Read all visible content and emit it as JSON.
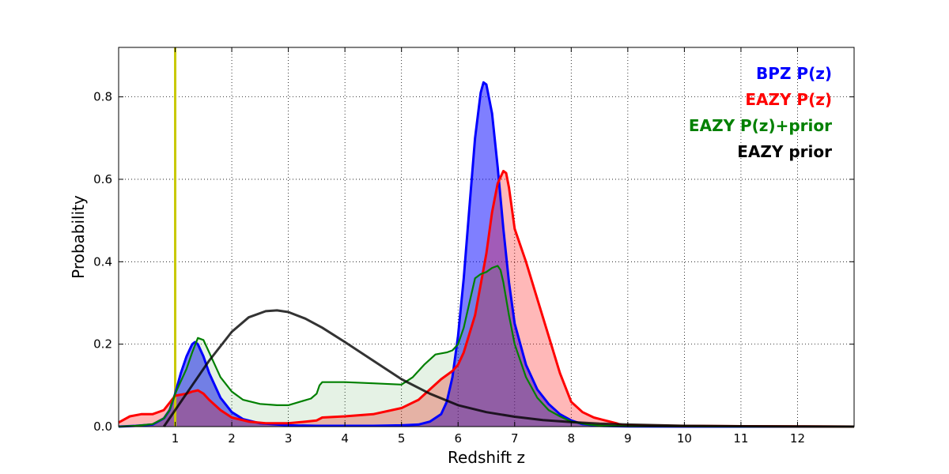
{
  "chart_data": {
    "type": "area",
    "xlabel": "Redshift z",
    "ylabel": "Probability",
    "xlim": [
      0,
      13
    ],
    "ylim": [
      0,
      0.92
    ],
    "xticks": [
      1,
      2,
      3,
      4,
      5,
      6,
      7,
      8,
      9,
      10,
      11,
      12
    ],
    "yticks": [
      0.0,
      0.2,
      0.4,
      0.6,
      0.8
    ],
    "ytick_labels": [
      "0.0",
      "0.2",
      "0.4",
      "0.6",
      "0.8"
    ],
    "grid": true,
    "legend_placement": "top-right",
    "vertical_line": {
      "x": 1.0,
      "color": "#c8c800"
    },
    "series": [
      {
        "name": "BPZ P(z)",
        "color": "#0000ff",
        "fill": "#0000ff",
        "fill_opacity": 0.5,
        "x": [
          0,
          0.3,
          0.6,
          0.8,
          0.9,
          1.0,
          1.1,
          1.2,
          1.3,
          1.35,
          1.4,
          1.5,
          1.6,
          1.8,
          2.0,
          2.2,
          2.5,
          3.0,
          3.5,
          4.0,
          4.5,
          5.0,
          5.3,
          5.5,
          5.7,
          5.8,
          5.9,
          6.0,
          6.1,
          6.2,
          6.3,
          6.4,
          6.45,
          6.5,
          6.6,
          6.7,
          6.8,
          6.9,
          7.0,
          7.2,
          7.4,
          7.6,
          7.8,
          8.0,
          8.2,
          8.5,
          9.0,
          10,
          11,
          12,
          13
        ],
        "y": [
          0.0,
          0.002,
          0.005,
          0.02,
          0.04,
          0.08,
          0.13,
          0.17,
          0.2,
          0.205,
          0.2,
          0.17,
          0.13,
          0.07,
          0.035,
          0.018,
          0.008,
          0.003,
          0.002,
          0.002,
          0.002,
          0.003,
          0.005,
          0.012,
          0.03,
          0.06,
          0.12,
          0.22,
          0.36,
          0.53,
          0.7,
          0.81,
          0.835,
          0.83,
          0.76,
          0.63,
          0.48,
          0.35,
          0.25,
          0.15,
          0.09,
          0.055,
          0.03,
          0.015,
          0.006,
          0.002,
          0.0005,
          0.0,
          0.0,
          0.0,
          0.0
        ]
      },
      {
        "name": "EAZY P(z)",
        "color": "#ff0000",
        "fill": "#ff0000",
        "fill_opacity": 0.28,
        "x": [
          0,
          0.2,
          0.4,
          0.6,
          0.8,
          1.0,
          1.2,
          1.3,
          1.4,
          1.5,
          1.6,
          1.8,
          2.0,
          2.3,
          2.6,
          3.0,
          3.3,
          3.5,
          3.6,
          4.0,
          4.5,
          5.0,
          5.3,
          5.5,
          5.7,
          5.9,
          6.0,
          6.1,
          6.3,
          6.5,
          6.6,
          6.7,
          6.8,
          6.85,
          6.9,
          7.0,
          7.2,
          7.4,
          7.6,
          7.8,
          8.0,
          8.2,
          8.4,
          8.6,
          8.8,
          8.9,
          9.5,
          10,
          11,
          12,
          13
        ],
        "y": [
          0.01,
          0.025,
          0.03,
          0.03,
          0.04,
          0.075,
          0.08,
          0.085,
          0.088,
          0.08,
          0.065,
          0.04,
          0.022,
          0.012,
          0.008,
          0.008,
          0.012,
          0.015,
          0.022,
          0.025,
          0.03,
          0.045,
          0.065,
          0.09,
          0.115,
          0.135,
          0.15,
          0.18,
          0.27,
          0.42,
          0.52,
          0.59,
          0.62,
          0.615,
          0.58,
          0.48,
          0.4,
          0.31,
          0.22,
          0.13,
          0.06,
          0.035,
          0.022,
          0.015,
          0.008,
          0.003,
          0.002,
          0.0015,
          0.001,
          0.0005,
          0.0
        ]
      },
      {
        "name": "EAZY P(z)+prior",
        "color": "#008000",
        "fill": "#008000",
        "fill_opacity": 0.1,
        "x": [
          0,
          0.3,
          0.6,
          0.8,
          0.9,
          1.0,
          1.1,
          1.2,
          1.3,
          1.4,
          1.5,
          1.6,
          1.7,
          1.8,
          2.0,
          2.2,
          2.5,
          2.8,
          3.0,
          3.2,
          3.4,
          3.5,
          3.55,
          3.6,
          4.0,
          4.5,
          5.0,
          5.2,
          5.4,
          5.6,
          5.8,
          5.9,
          6.0,
          6.1,
          6.2,
          6.3,
          6.4,
          6.5,
          6.6,
          6.7,
          6.75,
          6.8,
          6.9,
          7.0,
          7.2,
          7.4,
          7.6,
          7.8,
          8.0,
          8.3,
          8.6,
          9.0,
          10,
          11,
          12,
          13
        ],
        "y": [
          0.0,
          0.002,
          0.006,
          0.02,
          0.04,
          0.08,
          0.11,
          0.14,
          0.18,
          0.215,
          0.21,
          0.18,
          0.15,
          0.12,
          0.085,
          0.065,
          0.055,
          0.052,
          0.052,
          0.06,
          0.068,
          0.08,
          0.1,
          0.108,
          0.108,
          0.105,
          0.102,
          0.12,
          0.15,
          0.175,
          0.18,
          0.185,
          0.2,
          0.24,
          0.3,
          0.36,
          0.37,
          0.375,
          0.385,
          0.39,
          0.38,
          0.35,
          0.27,
          0.2,
          0.12,
          0.07,
          0.04,
          0.025,
          0.012,
          0.005,
          0.002,
          0.001,
          0.0005,
          0.0,
          0.0,
          0.0
        ]
      },
      {
        "name": "EAZY prior",
        "color": "#000000",
        "fill": "none",
        "fill_opacity": 0,
        "x": [
          0.8,
          1.0,
          1.3,
          1.6,
          2.0,
          2.3,
          2.6,
          2.8,
          3.0,
          3.3,
          3.6,
          4.0,
          4.5,
          5.0,
          5.5,
          6.0,
          6.5,
          7.0,
          7.5,
          8.0,
          8.5,
          9.0,
          10,
          11,
          12,
          13
        ],
        "y": [
          0.0,
          0.04,
          0.1,
          0.16,
          0.23,
          0.265,
          0.28,
          0.282,
          0.278,
          0.262,
          0.24,
          0.205,
          0.16,
          0.115,
          0.08,
          0.052,
          0.035,
          0.024,
          0.016,
          0.011,
          0.007,
          0.005,
          0.002,
          0.001,
          0.0005,
          0.0
        ]
      }
    ]
  }
}
